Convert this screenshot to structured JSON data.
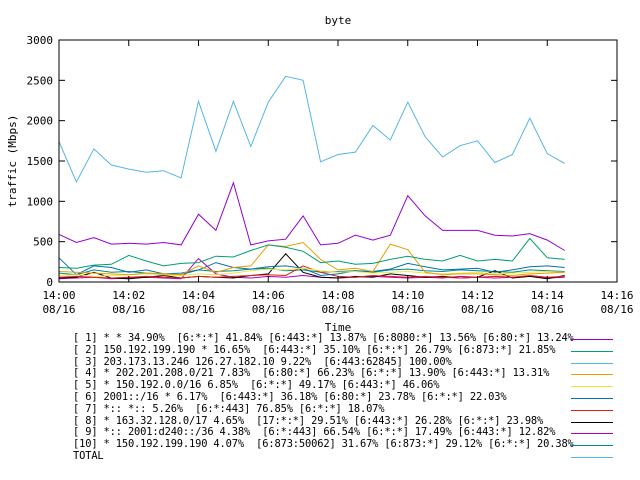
{
  "chart_data": {
    "type": "line",
    "title": "byte",
    "xlabel": "Time",
    "ylabel": "traffic (Mbps)",
    "ylim": [
      0,
      3000
    ],
    "yticks": [
      0,
      500,
      1000,
      1500,
      2000,
      2500,
      3000
    ],
    "xlim": [
      "14:00",
      "14:16"
    ],
    "xticks": [
      {
        "time": "14:00",
        "date": "08/16"
      },
      {
        "time": "14:02",
        "date": "08/16"
      },
      {
        "time": "14:04",
        "date": "08/16"
      },
      {
        "time": "14:06",
        "date": "08/16"
      },
      {
        "time": "14:08",
        "date": "08/16"
      },
      {
        "time": "14:10",
        "date": "08/16"
      },
      {
        "time": "14:12",
        "date": "08/16"
      },
      {
        "time": "14:14",
        "date": "08/16"
      },
      {
        "time": "14:16",
        "date": "08/16"
      }
    ],
    "grid": false,
    "legend_position": "bottom",
    "x": [
      "14:00:00",
      "14:00:30",
      "14:01:00",
      "14:01:30",
      "14:02:00",
      "14:02:30",
      "14:03:00",
      "14:03:30",
      "14:04:00",
      "14:04:30",
      "14:05:00",
      "14:05:30",
      "14:06:00",
      "14:06:30",
      "14:07:00",
      "14:07:30",
      "14:08:00",
      "14:08:30",
      "14:09:00",
      "14:09:30",
      "14:10:00",
      "14:10:30",
      "14:11:00",
      "14:11:30",
      "14:12:00",
      "14:12:30",
      "14:13:00",
      "14:13:30",
      "14:14:00",
      "14:14:30"
    ],
    "series": [
      {
        "name": "[ 1] * * 34.90%  [6:*:*] 41.84% [6:443:*] 13.87% [6:8080:*] 13.56% [6:80:*] 13.24%",
        "color": "#9400d3",
        "values": [
          590,
          490,
          550,
          470,
          480,
          470,
          490,
          460,
          840,
          640,
          1230,
          460,
          510,
          530,
          820,
          460,
          480,
          580,
          520,
          580,
          1070,
          820,
          640,
          640,
          640,
          580,
          570,
          600,
          520,
          390
        ]
      },
      {
        "name": "[ 2] 150.192.199.190 * 16.65%  [6:443:*] 35.10% [6:*:*] 26.79% [6:873:*] 21.85%",
        "color": "#009e73",
        "values": [
          180,
          170,
          210,
          220,
          330,
          260,
          200,
          230,
          240,
          320,
          310,
          390,
          460,
          430,
          380,
          240,
          260,
          220,
          230,
          280,
          320,
          280,
          260,
          330,
          260,
          280,
          260,
          540,
          300,
          280
        ]
      },
      {
        "name": "[ 3] 203.173.13.246 126.27.182.10 9.22%  [6:443:62845] 100.00%",
        "color": "#56b4e9",
        "values": [
          1740,
          1240,
          1650,
          1450,
          1400,
          1360,
          1380,
          1290,
          2240,
          1620,
          2240,
          1680,
          2230,
          2550,
          2500,
          1490,
          1580,
          1610,
          1940,
          1760,
          2230,
          1800,
          1550,
          1690,
          1750,
          1480,
          1580,
          2030,
          1590,
          1470
        ]
      },
      {
        "name": "[ 4] * 202.201.208.0/21 7.83%  [6:80:*] 66.23% [6:*:*] 13.90% [6:443:*] 13.31%",
        "color": "#e69f00",
        "values": [
          130,
          120,
          110,
          100,
          90,
          110,
          100,
          90,
          200,
          120,
          180,
          200,
          460,
          440,
          490,
          280,
          150,
          170,
          130,
          470,
          400,
          120,
          90,
          100,
          100,
          90,
          80,
          100,
          110,
          120
        ]
      },
      {
        "name": "[ 5] * 150.192.0.0/16 6.85%  [6:*:*] 49.17% [6:443:*] 46.06%",
        "color": "#f0e442",
        "values": [
          80,
          90,
          70,
          80,
          90,
          100,
          90,
          80,
          100,
          90,
          110,
          140,
          160,
          150,
          170,
          140,
          120,
          130,
          110,
          120,
          130,
          110,
          100,
          110,
          120,
          100,
          110,
          120,
          130,
          120
        ]
      },
      {
        "name": "[ 6] 2001::/16 * 6.17%  [6:443:*] 36.18% [6:80:*] 23.78% [6:*:*] 22.03%",
        "color": "#0072b2",
        "values": [
          300,
          90,
          200,
          180,
          120,
          150,
          100,
          110,
          150,
          240,
          180,
          160,
          190,
          200,
          170,
          80,
          100,
          140,
          130,
          160,
          230,
          190,
          150,
          160,
          170,
          120,
          150,
          190,
          200,
          180
        ]
      },
      {
        "name": "[ 7] *:: *:: 5.26%  [6:*:443] 76.85% [6:*:*] 18.07%",
        "color": "#e51e10",
        "values": [
          60,
          70,
          60,
          50,
          60,
          70,
          60,
          50,
          70,
          60,
          70,
          80,
          90,
          80,
          200,
          120,
          70,
          60,
          80,
          70,
          60,
          70,
          60,
          50,
          60,
          70,
          60,
          80,
          60,
          70
        ]
      },
      {
        "name": "[ 8] * 163.32.128.0/17 4.65%  [17:*:*] 29.51% [6:443:*] 26.28% [6:*:*] 23.98%",
        "color": "#000000",
        "values": [
          50,
          60,
          120,
          50,
          40,
          60,
          80,
          50,
          70,
          60,
          50,
          80,
          100,
          350,
          120,
          60,
          50,
          70,
          60,
          100,
          80,
          60,
          70,
          50,
          60,
          140,
          50,
          70,
          40,
          80
        ]
      },
      {
        "name": "[ 9] *:: 2001:d240::/36 4.38%  [6:*:443] 66.54% [6:*:*] 17.49% [6:443:*] 12.82%",
        "color": "#b000b5",
        "values": [
          40,
          50,
          60,
          40,
          50,
          60,
          50,
          40,
          290,
          100,
          60,
          50,
          70,
          60,
          80,
          60,
          50,
          60,
          70,
          60,
          50,
          60,
          50,
          70,
          60,
          50,
          60,
          70,
          50,
          60
        ]
      },
      {
        "name": "[10] * 150.192.199.190 4.07%  [6:873:50062] 31.67% [6:873:*] 29.12% [6:*:*] 20.38%",
        "color": "#008b8b",
        "values": [
          110,
          90,
          150,
          120,
          130,
          110,
          100,
          90,
          150,
          130,
          140,
          160,
          170,
          140,
          150,
          120,
          130,
          140,
          120,
          150,
          160,
          140,
          130,
          150,
          140,
          130,
          120,
          150,
          140,
          130
        ]
      }
    ],
    "total_label": "TOTAL",
    "total_color": "#56b4e9"
  }
}
